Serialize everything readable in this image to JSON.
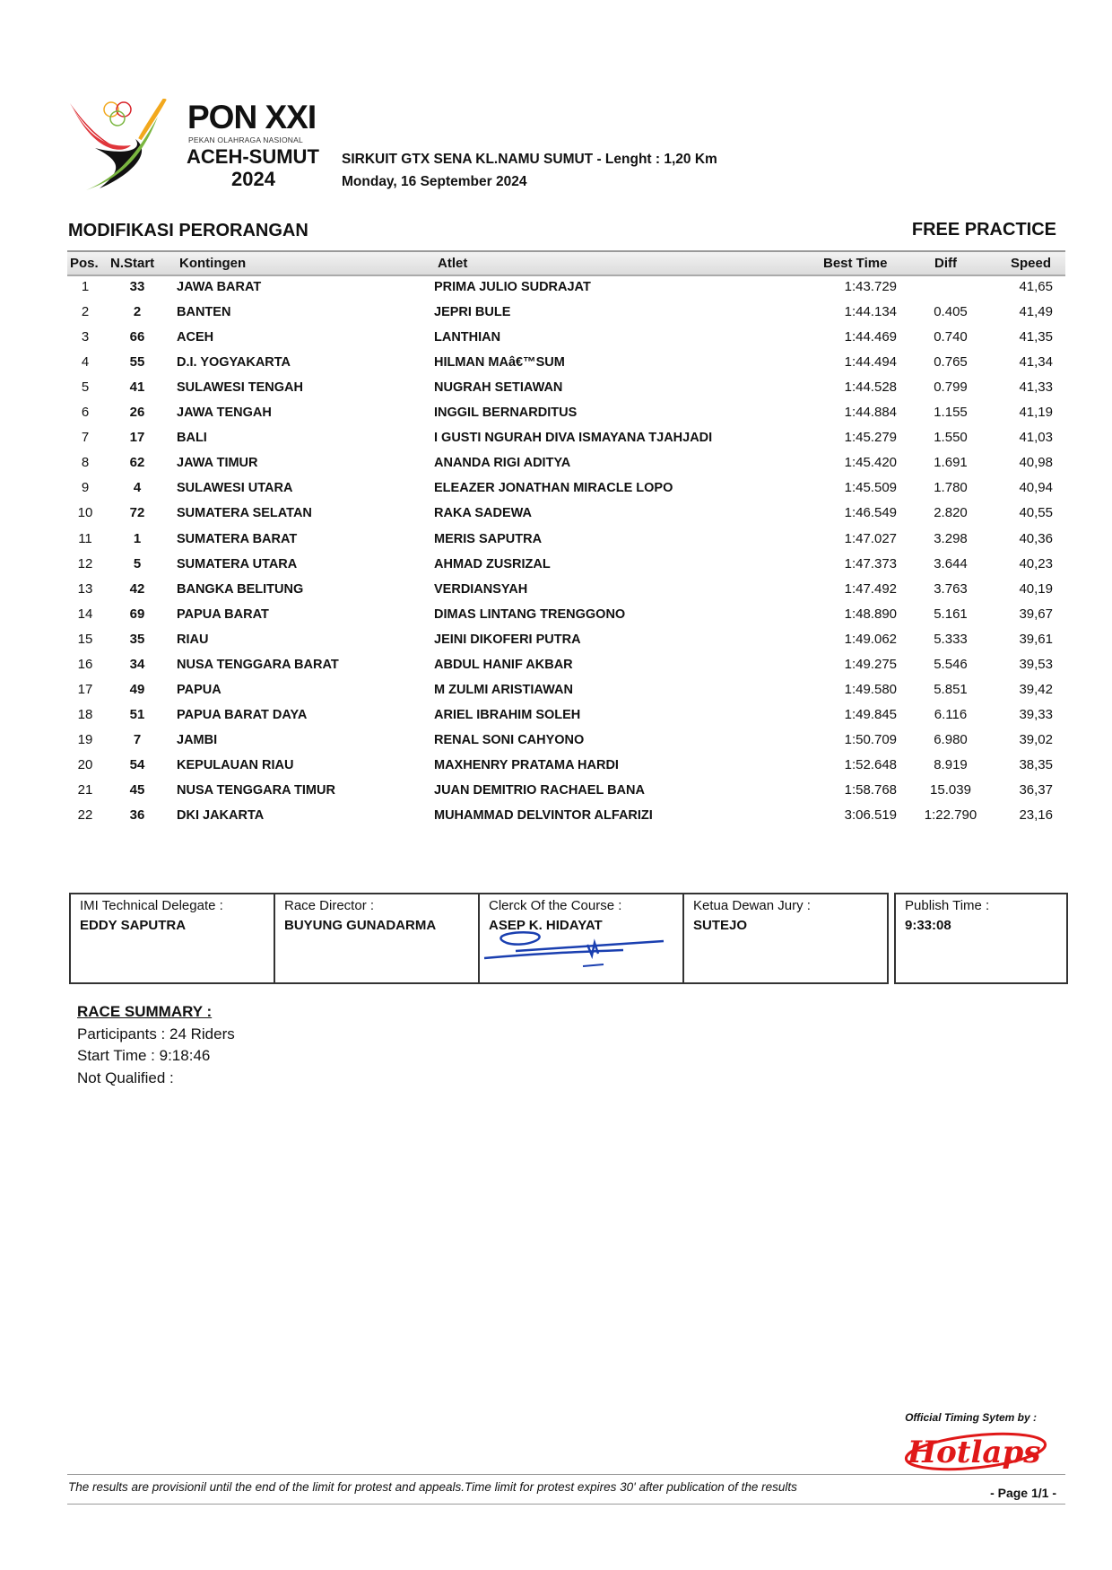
{
  "header": {
    "logo_text": {
      "title": "PON XXI",
      "subtitle": "PEKAN OLAHRAGA NASIONAL",
      "region": "ACEH-SUMUT",
      "year": "2024"
    },
    "circuit": "SIRKUIT GTX SENA KL.NAMU SUMUT - Lenght : 1,20 Km",
    "date": "Monday, 16 September 2024",
    "category": "MODIFIKASI PERORANGAN",
    "session": "FREE PRACTICE"
  },
  "table": {
    "columns": [
      "Pos.",
      "N.Start",
      "Kontingen",
      "Atlet",
      "Best Time",
      "Diff",
      "Speed"
    ],
    "rows": [
      [
        "1",
        "33",
        "JAWA BARAT",
        "PRIMA JULIO SUDRAJAT",
        "1:43.729",
        "",
        "41,65"
      ],
      [
        "2",
        "2",
        "BANTEN",
        "JEPRI BULE",
        "1:44.134",
        "0.405",
        "41,49"
      ],
      [
        "3",
        "66",
        "ACEH",
        "LANTHIAN",
        "1:44.469",
        "0.740",
        "41,35"
      ],
      [
        "4",
        "55",
        "D.I. YOGYAKARTA",
        "HILMAN MAâ€™SUM",
        "1:44.494",
        "0.765",
        "41,34"
      ],
      [
        "5",
        "41",
        "SULAWESI TENGAH",
        "NUGRAH SETIAWAN",
        "1:44.528",
        "0.799",
        "41,33"
      ],
      [
        "6",
        "26",
        "JAWA TENGAH",
        "INGGIL BERNARDITUS",
        "1:44.884",
        "1.155",
        "41,19"
      ],
      [
        "7",
        "17",
        "BALI",
        "I GUSTI NGURAH DIVA ISMAYANA TJAHJADI",
        "1:45.279",
        "1.550",
        "41,03"
      ],
      [
        "8",
        "62",
        "JAWA TIMUR",
        "ANANDA RIGI ADITYA",
        "1:45.420",
        "1.691",
        "40,98"
      ],
      [
        "9",
        "4",
        "SULAWESI UTARA",
        "ELEAZER JONATHAN MIRACLE LOPO",
        "1:45.509",
        "1.780",
        "40,94"
      ],
      [
        "10",
        "72",
        "SUMATERA SELATAN",
        "RAKA SADEWA",
        "1:46.549",
        "2.820",
        "40,55"
      ],
      [
        "11",
        "1",
        "SUMATERA BARAT",
        "MERIS SAPUTRA",
        "1:47.027",
        "3.298",
        "40,36"
      ],
      [
        "12",
        "5",
        "SUMATERA UTARA",
        "AHMAD ZUSRIZAL",
        "1:47.373",
        "3.644",
        "40,23"
      ],
      [
        "13",
        "42",
        "BANGKA BELITUNG",
        "VERDIANSYAH",
        "1:47.492",
        "3.763",
        "40,19"
      ],
      [
        "14",
        "69",
        "PAPUA BARAT",
        "DIMAS LINTANG TRENGGONO",
        "1:48.890",
        "5.161",
        "39,67"
      ],
      [
        "15",
        "35",
        "RIAU",
        "JEINI DIKOFERI PUTRA",
        "1:49.062",
        "5.333",
        "39,61"
      ],
      [
        "16",
        "34",
        "NUSA TENGGARA BARAT",
        "ABDUL HANIF AKBAR",
        "1:49.275",
        "5.546",
        "39,53"
      ],
      [
        "17",
        "49",
        "PAPUA",
        "M ZULMI ARISTIAWAN",
        "1:49.580",
        "5.851",
        "39,42"
      ],
      [
        "18",
        "51",
        "PAPUA BARAT DAYA",
        "ARIEL IBRAHIM SOLEH",
        "1:49.845",
        "6.116",
        "39,33"
      ],
      [
        "19",
        "7",
        "JAMBI",
        "RENAL SONI CAHYONO",
        "1:50.709",
        "6.980",
        "39,02"
      ],
      [
        "20",
        "54",
        "KEPULAUAN RIAU",
        "MAXHENRY PRATAMA HARDI",
        "1:52.648",
        "8.919",
        "38,35"
      ],
      [
        "21",
        "45",
        "NUSA TENGGARA TIMUR",
        "JUAN DEMITRIO RACHAEL BANA",
        "1:58.768",
        "15.039",
        "36,37"
      ],
      [
        "22",
        "36",
        "DKI JAKARTA",
        "MUHAMMAD DELVINTOR ALFARIZI",
        "3:06.519",
        "1:22.790",
        "23,16"
      ]
    ]
  },
  "officials": [
    {
      "label": "IMI Technical Delegate :",
      "name": "EDDY SAPUTRA"
    },
    {
      "label": "Race Director :",
      "name": "BUYUNG GUNADARMA"
    },
    {
      "label": "Clerck Of the Course :",
      "name": "ASEP K. HIDAYAT"
    },
    {
      "label": "Ketua Dewan Jury :",
      "name": "SUTEJO"
    }
  ],
  "publish": {
    "label": "Publish Time :",
    "value": "9:33:08"
  },
  "summary": {
    "title": "RACE SUMMARY :",
    "participants": "Participants : 24 Riders",
    "start_time": "Start Time : 9:18:46",
    "not_qualified": "Not Qualified :"
  },
  "footer": {
    "timing_label": "Official Timing Sytem by :",
    "timing_brand": "Hotlaps",
    "disclaimer": "The results are provisionil until the end of the limit for protest and appeals.Time limit for protest expires 30' after publication of the results",
    "page": "- Page 1/1 -"
  },
  "colors": {
    "signature": "#1a3fb0",
    "brand": "#e01818",
    "header_band": "#e2e2e2"
  }
}
